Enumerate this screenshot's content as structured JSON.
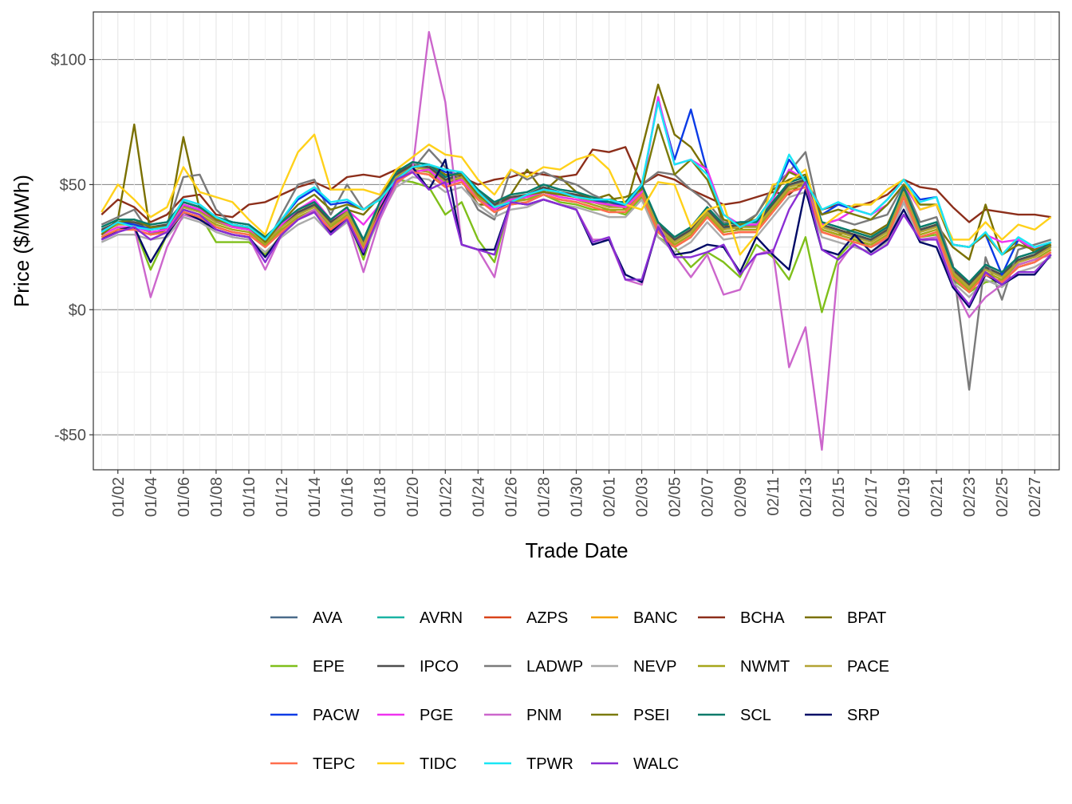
{
  "chart_data": {
    "type": "line",
    "title": "",
    "xlabel": "Trade Date",
    "ylabel": "Price ($/MWh)",
    "ylim": [
      -64,
      119
    ],
    "y_ticks": [
      {
        "value": -50,
        "label": "-$50"
      },
      {
        "value": 0,
        "label": "$0"
      },
      {
        "value": 50,
        "label": "$50"
      },
      {
        "value": 100,
        "label": "$100"
      }
    ],
    "x_day_range": [
      1,
      59
    ],
    "x_ticks": [
      {
        "day": 2,
        "label": "01/02"
      },
      {
        "day": 4,
        "label": "01/04"
      },
      {
        "day": 6,
        "label": "01/06"
      },
      {
        "day": 8,
        "label": "01/08"
      },
      {
        "day": 10,
        "label": "01/10"
      },
      {
        "day": 12,
        "label": "01/12"
      },
      {
        "day": 14,
        "label": "01/14"
      },
      {
        "day": 16,
        "label": "01/16"
      },
      {
        "day": 18,
        "label": "01/18"
      },
      {
        "day": 20,
        "label": "01/20"
      },
      {
        "day": 22,
        "label": "01/22"
      },
      {
        "day": 24,
        "label": "01/24"
      },
      {
        "day": 26,
        "label": "01/26"
      },
      {
        "day": 28,
        "label": "01/28"
      },
      {
        "day": 30,
        "label": "01/30"
      },
      {
        "day": 32,
        "label": "02/01"
      },
      {
        "day": 34,
        "label": "02/03"
      },
      {
        "day": 36,
        "label": "02/05"
      },
      {
        "day": 38,
        "label": "02/07"
      },
      {
        "day": 40,
        "label": "02/09"
      },
      {
        "day": 42,
        "label": "02/11"
      },
      {
        "day": 44,
        "label": "02/13"
      },
      {
        "day": 46,
        "label": "02/15"
      },
      {
        "day": 48,
        "label": "02/17"
      },
      {
        "day": 50,
        "label": "02/19"
      },
      {
        "day": 52,
        "label": "02/21"
      },
      {
        "day": 54,
        "label": "02/23"
      },
      {
        "day": 56,
        "label": "02/25"
      },
      {
        "day": 58,
        "label": "02/27"
      }
    ],
    "base_curve": [
      30,
      33,
      33,
      31,
      32,
      40,
      38,
      34,
      32,
      31,
      26,
      32,
      37,
      40,
      33,
      38,
      25,
      40,
      52,
      56,
      55,
      50,
      52,
      45,
      40,
      43,
      44,
      47,
      45,
      44,
      42,
      40,
      40,
      47,
      32,
      26,
      30,
      38,
      31,
      32,
      32,
      40,
      48,
      50,
      32,
      30,
      28,
      26,
      30,
      46,
      30,
      32,
      14,
      8,
      15,
      12,
      18,
      20,
      24
    ],
    "legend_position": "bottom",
    "series": [
      {
        "name": "AVA",
        "color": "#4a6b8a",
        "offset": 1.5,
        "values": []
      },
      {
        "name": "AVRN",
        "color": "#1ab3a3",
        "offset": 3,
        "values": []
      },
      {
        "name": "AZPS",
        "color": "#d9441a",
        "offset": -1,
        "values": []
      },
      {
        "name": "BANC",
        "color": "#f5a300",
        "offset": 2,
        "values": []
      },
      {
        "name": "BCHA",
        "color": "#8c2e1a",
        "offset": 6,
        "values": [
          38,
          44,
          41,
          35,
          38,
          45,
          46,
          38,
          37,
          42,
          43,
          46,
          49,
          51,
          48,
          53,
          54,
          53,
          56,
          57,
          58,
          54,
          53,
          50,
          52,
          53,
          55,
          54,
          53,
          54,
          64,
          63,
          65,
          50,
          54,
          52,
          48,
          45,
          42,
          43,
          45,
          47,
          46,
          52,
          40,
          42,
          41,
          43,
          46,
          52,
          49,
          48,
          41,
          35,
          40,
          39,
          38,
          38,
          37
        ]
      },
      {
        "name": "BPAT",
        "color": "#7a7000",
        "offset": 2,
        "values": [
          30,
          36,
          74,
          30,
          32,
          69,
          40,
          35,
          33,
          32,
          25,
          33,
          40,
          43,
          36,
          40,
          38,
          45,
          55,
          57,
          56,
          51,
          52,
          42,
          42,
          46,
          56,
          47,
          53,
          47,
          44,
          46,
          40,
          64,
          90,
          70,
          65,
          55,
          34,
          32,
          38,
          48,
          52,
          54,
          32,
          30,
          32,
          30,
          34,
          48,
          32,
          34,
          25,
          20,
          42,
          22,
          28,
          23,
          26
        ]
      },
      {
        "name": "EPE",
        "color": "#7fbf1a",
        "offset": -1,
        "values": [
          29,
          32,
          33,
          16,
          30,
          40,
          38,
          27,
          27,
          27,
          22,
          30,
          36,
          40,
          34,
          37,
          20,
          40,
          52,
          51,
          49,
          38,
          43,
          28,
          19,
          44,
          44,
          46,
          43,
          42,
          40,
          40,
          38,
          45,
          29,
          25,
          17,
          23,
          19,
          13,
          26,
          21,
          12,
          29,
          -1,
          21,
          28,
          25,
          29,
          45,
          29,
          30,
          12,
          7,
          11,
          12,
          18,
          20,
          22
        ]
      },
      {
        "name": "IPCO",
        "color": "#4d4d4d",
        "offset": 2,
        "values": []
      },
      {
        "name": "LADWP",
        "color": "#7a7a7a",
        "offset": 4,
        "values": [
          34,
          37,
          40,
          30,
          33,
          53,
          54,
          40,
          34,
          32,
          25,
          38,
          50,
          52,
          38,
          50,
          40,
          45,
          53,
          56,
          64,
          57,
          52,
          40,
          36,
          56,
          52,
          55,
          52,
          50,
          46,
          43,
          43,
          50,
          55,
          54,
          48,
          43,
          35,
          34,
          38,
          49,
          55,
          63,
          34,
          36,
          34,
          36,
          38,
          50,
          35,
          37,
          18,
          -32,
          21,
          4,
          24,
          26,
          28
        ]
      },
      {
        "name": "NEVP",
        "color": "#ababab",
        "offset": -3,
        "values": []
      },
      {
        "name": "NWMT",
        "color": "#a6a61a",
        "offset": 0,
        "values": []
      },
      {
        "name": "PACE",
        "color": "#b3a333",
        "offset": 1,
        "values": []
      },
      {
        "name": "PACW",
        "color": "#0a3be6",
        "offset": 2,
        "values": [
          31,
          35,
          34,
          32,
          33,
          44,
          42,
          37,
          34,
          33,
          28,
          36,
          44,
          48,
          42,
          43,
          40,
          44,
          52,
          57,
          58,
          55,
          54,
          47,
          40,
          43,
          46,
          48,
          47,
          45,
          44,
          43,
          42,
          49,
          84,
          60,
          80,
          55,
          38,
          34,
          36,
          45,
          60,
          51,
          38,
          42,
          40,
          38,
          44,
          52,
          44,
          45,
          26,
          25,
          30,
          14,
          28,
          24,
          27
        ]
      },
      {
        "name": "PGE",
        "color": "#ef33ef",
        "offset": 2,
        "values": [
          30,
          33,
          33,
          31,
          32,
          42,
          40,
          36,
          33,
          32,
          28,
          34,
          40,
          44,
          36,
          40,
          34,
          42,
          51,
          55,
          56,
          50,
          52,
          44,
          40,
          44,
          45,
          47,
          45,
          44,
          43,
          42,
          41,
          47,
          85,
          58,
          60,
          56,
          38,
          34,
          34,
          44,
          56,
          52,
          34,
          36,
          40,
          38,
          42,
          50,
          40,
          42,
          26,
          25,
          30,
          27,
          28,
          24,
          27
        ]
      },
      {
        "name": "PNM",
        "color": "#cc66cc",
        "offset": 0,
        "values": [
          28,
          31,
          33,
          5,
          25,
          38,
          36,
          32,
          30,
          29,
          16,
          30,
          36,
          40,
          32,
          36,
          15,
          36,
          50,
          56,
          111,
          83,
          26,
          24,
          13,
          43,
          42,
          44,
          42,
          40,
          28,
          28,
          12,
          10,
          34,
          22,
          13,
          22,
          6,
          8,
          22,
          24,
          -23,
          -7,
          -56,
          18,
          27,
          25,
          28,
          38,
          28,
          29,
          10,
          -3,
          5,
          10,
          18,
          20,
          22
        ]
      },
      {
        "name": "PSEI",
        "color": "#7a7a0a",
        "offset": 1,
        "values": [
          30,
          35,
          36,
          33,
          33,
          43,
          41,
          36,
          34,
          33,
          27,
          35,
          42,
          46,
          40,
          42,
          40,
          44,
          52,
          57,
          58,
          54,
          54,
          46,
          41,
          43,
          46,
          47,
          46,
          45,
          44,
          44,
          45,
          48,
          74,
          54,
          60,
          52,
          36,
          34,
          36,
          45,
          55,
          52,
          38,
          40,
          38,
          36,
          42,
          50,
          42,
          42,
          26,
          25,
          30,
          22,
          26,
          24,
          26
        ]
      },
      {
        "name": "SCL",
        "color": "#0a7a6a",
        "offset": 3,
        "values": []
      },
      {
        "name": "SRP",
        "color": "#000a66",
        "offset": -1,
        "values": [
          28,
          32,
          33,
          19,
          30,
          39,
          36,
          32,
          30,
          29,
          21,
          30,
          36,
          39,
          31,
          36,
          22,
          40,
          52,
          57,
          48,
          60,
          26,
          24,
          24,
          43,
          42,
          44,
          42,
          40,
          26,
          28,
          14,
          11,
          33,
          22,
          23,
          26,
          25,
          15,
          29,
          22,
          16,
          48,
          24,
          22,
          30,
          23,
          28,
          40,
          27,
          25,
          9,
          1,
          14,
          10,
          14,
          14,
          22
        ]
      },
      {
        "name": "TEPC",
        "color": "#ff6e4d",
        "offset": -1,
        "values": []
      },
      {
        "name": "TIDC",
        "color": "#ffd11a",
        "offset": 2,
        "values": [
          39,
          50,
          44,
          37,
          41,
          57,
          47,
          45,
          43,
          36,
          30,
          48,
          63,
          70,
          48,
          48,
          48,
          46,
          56,
          61,
          66,
          62,
          61,
          52,
          46,
          56,
          53,
          57,
          56,
          60,
          62,
          56,
          42,
          40,
          51,
          50,
          33,
          40,
          42,
          22,
          30,
          50,
          51,
          56,
          33,
          38,
          42,
          42,
          48,
          52,
          40,
          42,
          28,
          28,
          35,
          28,
          34,
          32,
          37
        ]
      },
      {
        "name": "TPWR",
        "color": "#1ae6f5",
        "offset": 3,
        "values": [
          31,
          35,
          33,
          32,
          33,
          44,
          42,
          37,
          34,
          33,
          28,
          36,
          45,
          49,
          43,
          44,
          40,
          44,
          52,
          57,
          58,
          56,
          55,
          47,
          41,
          43,
          46,
          48,
          47,
          45,
          44,
          44,
          42,
          50,
          83,
          58,
          60,
          54,
          38,
          33,
          36,
          45,
          62,
          51,
          40,
          43,
          40,
          38,
          44,
          52,
          43,
          45,
          26,
          25,
          31,
          22,
          29,
          25,
          27
        ]
      },
      {
        "name": "WALC",
        "color": "#8a2ed4",
        "offset": -1,
        "values": [
          28,
          31,
          33,
          28,
          31,
          40,
          38,
          32,
          30,
          29,
          19,
          30,
          36,
          39,
          30,
          36,
          23,
          38,
          52,
          55,
          48,
          51,
          26,
          24,
          22,
          43,
          42,
          44,
          42,
          40,
          27,
          29,
          12,
          12,
          33,
          21,
          21,
          23,
          26,
          14,
          22,
          23,
          40,
          51,
          24,
          20,
          26,
          22,
          26,
          38,
          28,
          28,
          10,
          2,
          15,
          10,
          15,
          15,
          22
        ]
      }
    ]
  }
}
